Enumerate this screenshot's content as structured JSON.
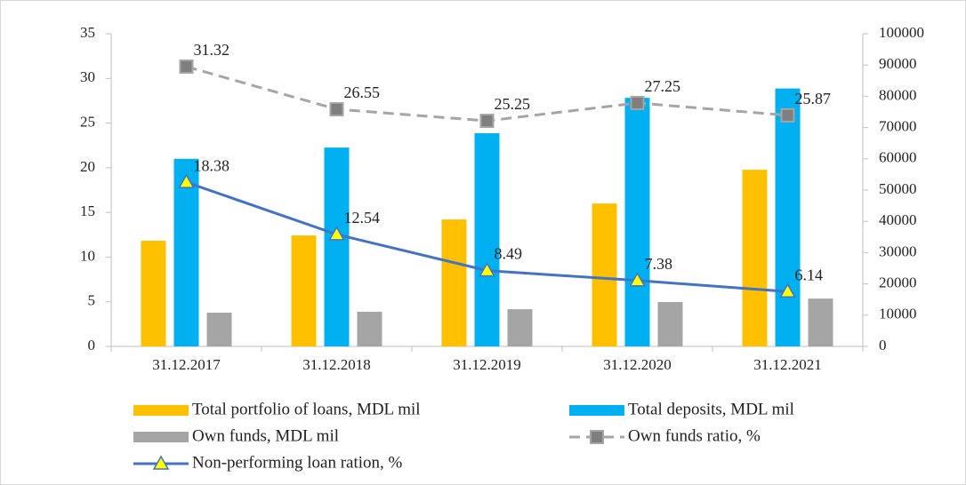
{
  "chart_data": {
    "type": "bar",
    "categories": [
      "31.12.2017",
      "31.12.2018",
      "31.12.2019",
      "31.12.2020",
      "31.12.2021"
    ],
    "ylim": [
      0,
      35
    ],
    "yticks": [
      0,
      5,
      10,
      15,
      20,
      25,
      30,
      35
    ],
    "y2lim": [
      0,
      100000
    ],
    "y2ticks": [
      0,
      10000,
      20000,
      30000,
      40000,
      50000,
      60000,
      70000,
      80000,
      90000,
      100000
    ],
    "grid": false,
    "legend": "bottom",
    "series": [
      {
        "name": "Total portfolio of loans, MDL mil",
        "type": "bar",
        "axis": "y2",
        "color": "#ffc000",
        "values": [
          33800,
          35500,
          40600,
          45700,
          56500
        ]
      },
      {
        "name": "Total deposits, MDL mil",
        "type": "bar",
        "axis": "y2",
        "color": "#00b0f0",
        "values": [
          60000,
          63600,
          68200,
          79500,
          82500
        ]
      },
      {
        "name": "Own funds, MDL mil",
        "type": "bar",
        "axis": "y2",
        "color": "#a5a5a5",
        "values": [
          10800,
          11100,
          11900,
          14200,
          15300
        ]
      },
      {
        "name": "Own funds ratio, %",
        "type": "line",
        "axis": "y",
        "color": "#a5a5a5",
        "dash": true,
        "marker": "square",
        "values": [
          31.32,
          26.55,
          25.25,
          27.25,
          25.87
        ]
      },
      {
        "name": "Non-performing loan ration, %",
        "type": "line",
        "axis": "y",
        "color": "#4472c4",
        "dash": false,
        "marker": "triangle",
        "values": [
          18.38,
          12.54,
          8.49,
          7.38,
          6.14
        ]
      }
    ]
  }
}
